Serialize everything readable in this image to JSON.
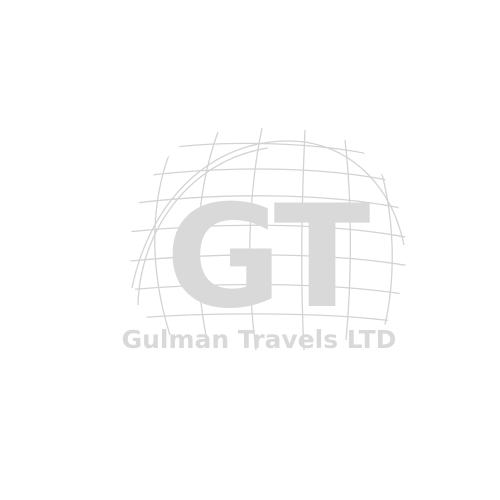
{
  "logo": {
    "monogram": "GT",
    "company_name": "Gulman Travels LTD",
    "icon": "globe-icon",
    "colors": {
      "background": "#ffffff",
      "lettering": "#d9d9d9",
      "globe_lines": "#d3d3d3"
    }
  }
}
